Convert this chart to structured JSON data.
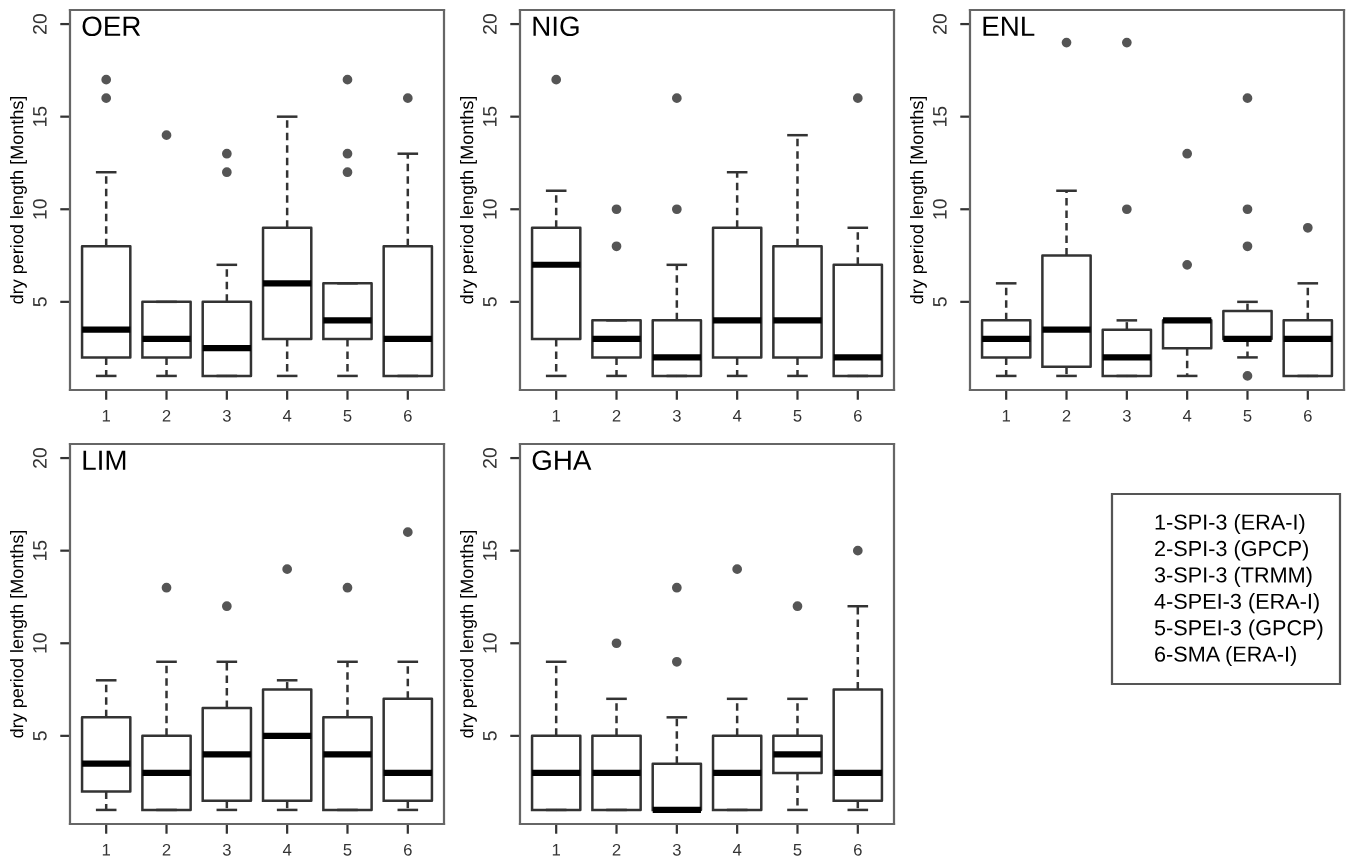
{
  "chart_data": [
    {
      "type": "box",
      "title": "OER",
      "ylabel": "dry period length [Months]",
      "categories": [
        "1",
        "2",
        "3",
        "4",
        "5",
        "6"
      ],
      "ylim": [
        0.24,
        20.76
      ],
      "yticks": [
        5,
        10,
        15,
        20
      ],
      "grid": false,
      "boxes": [
        {
          "low": 1,
          "q1": 2,
          "median": 3.5,
          "q3": 8,
          "high": 12,
          "outliers": [
            16,
            17
          ]
        },
        {
          "low": 1,
          "q1": 2,
          "median": 3,
          "q3": 5,
          "high": 5,
          "outliers": [
            14
          ]
        },
        {
          "low": 1,
          "q1": 1,
          "median": 2.5,
          "q3": 5,
          "high": 7,
          "outliers": [
            12,
            13
          ]
        },
        {
          "low": 1,
          "q1": 3,
          "median": 6,
          "q3": 9,
          "high": 15
        },
        {
          "low": 1,
          "q1": 3,
          "median": 4,
          "q3": 6,
          "high": 6,
          "outliers": [
            12,
            13,
            17
          ]
        },
        {
          "low": 1,
          "q1": 1,
          "median": 3,
          "q3": 8,
          "high": 13,
          "outliers": [
            16
          ]
        }
      ]
    },
    {
      "type": "box",
      "title": "NIG",
      "ylabel": "dry period length [Months]",
      "categories": [
        "1",
        "2",
        "3",
        "4",
        "5",
        "6"
      ],
      "ylim": [
        0.24,
        20.76
      ],
      "yticks": [
        5,
        10,
        15,
        20
      ],
      "grid": false,
      "boxes": [
        {
          "low": 1,
          "q1": 3,
          "median": 7,
          "q3": 9,
          "high": 11,
          "outliers": [
            17
          ]
        },
        {
          "low": 1,
          "q1": 2,
          "median": 3,
          "q3": 4,
          "high": 4,
          "outliers": [
            8,
            10
          ]
        },
        {
          "low": 1,
          "q1": 1,
          "median": 2,
          "q3": 4,
          "high": 7,
          "outliers": [
            10,
            16
          ]
        },
        {
          "low": 1,
          "q1": 2,
          "median": 4,
          "q3": 9,
          "high": 12
        },
        {
          "low": 1,
          "q1": 2,
          "median": 4,
          "q3": 8,
          "high": 14
        },
        {
          "low": 1,
          "q1": 1,
          "median": 2,
          "q3": 7,
          "high": 9,
          "outliers": [
            16
          ]
        }
      ]
    },
    {
      "type": "box",
      "title": "ENL",
      "ylabel": "dry period length [Months]",
      "categories": [
        "1",
        "2",
        "3",
        "4",
        "5",
        "6"
      ],
      "ylim": [
        0.24,
        20.76
      ],
      "yticks": [
        5,
        10,
        15,
        20
      ],
      "grid": false,
      "boxes": [
        {
          "low": 1,
          "q1": 2,
          "median": 3,
          "q3": 4,
          "high": 6
        },
        {
          "low": 1,
          "q1": 1.5,
          "median": 3.5,
          "q3": 7.5,
          "high": 11,
          "outliers": [
            19
          ]
        },
        {
          "low": 1,
          "q1": 1,
          "median": 2,
          "q3": 3.5,
          "high": 4,
          "outliers": [
            10,
            19
          ]
        },
        {
          "low": 1,
          "q1": 2.5,
          "median": 4,
          "q3": 4,
          "high": 4,
          "outliers": [
            7,
            13
          ]
        },
        {
          "low": 2,
          "q1": 3,
          "median": 3,
          "q3": 4.5,
          "high": 5,
          "outliers": [
            1,
            8,
            10,
            16
          ]
        },
        {
          "low": 1,
          "q1": 1,
          "median": 3,
          "q3": 4,
          "high": 6,
          "outliers": [
            9
          ]
        }
      ]
    },
    {
      "type": "box",
      "title": "LIM",
      "ylabel": "dry period length [Months]",
      "categories": [
        "1",
        "2",
        "3",
        "4",
        "5",
        "6"
      ],
      "ylim": [
        0.24,
        20.76
      ],
      "yticks": [
        5,
        10,
        15,
        20
      ],
      "grid": false,
      "boxes": [
        {
          "low": 1,
          "q1": 2,
          "median": 3.5,
          "q3": 6,
          "high": 8
        },
        {
          "low": 1,
          "q1": 1,
          "median": 3,
          "q3": 5,
          "high": 9,
          "outliers": [
            13
          ]
        },
        {
          "low": 1,
          "q1": 1.5,
          "median": 4,
          "q3": 6.5,
          "high": 9,
          "outliers": [
            12
          ]
        },
        {
          "low": 1,
          "q1": 1.5,
          "median": 5,
          "q3": 7.5,
          "high": 8,
          "outliers": [
            14
          ]
        },
        {
          "low": 1,
          "q1": 1,
          "median": 4,
          "q3": 6,
          "high": 9,
          "outliers": [
            13
          ]
        },
        {
          "low": 1,
          "q1": 1.5,
          "median": 3,
          "q3": 7,
          "high": 9,
          "outliers": [
            16
          ]
        }
      ]
    },
    {
      "type": "box",
      "title": "GHA",
      "ylabel": "dry period length [Months]",
      "categories": [
        "1",
        "2",
        "3",
        "4",
        "5",
        "6"
      ],
      "ylim": [
        0.24,
        20.76
      ],
      "yticks": [
        5,
        10,
        15,
        20
      ],
      "grid": false,
      "boxes": [
        {
          "low": 1,
          "q1": 1,
          "median": 3,
          "q3": 5,
          "high": 9
        },
        {
          "low": 1,
          "q1": 1,
          "median": 3,
          "q3": 5,
          "high": 7,
          "outliers": [
            10
          ]
        },
        {
          "low": 1,
          "q1": 1,
          "median": 1,
          "q3": 3.5,
          "high": 6,
          "outliers": [
            9,
            13
          ]
        },
        {
          "low": 1,
          "q1": 1,
          "median": 3,
          "q3": 5,
          "high": 7,
          "outliers": [
            14
          ]
        },
        {
          "low": 1,
          "q1": 3,
          "median": 4,
          "q3": 5,
          "high": 7,
          "outliers": [
            12
          ]
        },
        {
          "low": 1,
          "q1": 1.5,
          "median": 3,
          "q3": 7.5,
          "high": 12,
          "outliers": [
            15
          ]
        }
      ]
    },
    {
      "type": "other",
      "annotations": [
        "1-SPI-3 (ERA-I)",
        "2-SPI-3 (GPCP)",
        "3-SPI-3 (TRMM)",
        "4-SPEI-3 (ERA-I)",
        "5-SPEI-3 (GPCP)",
        "6-SMA (ERA-I)"
      ]
    }
  ]
}
